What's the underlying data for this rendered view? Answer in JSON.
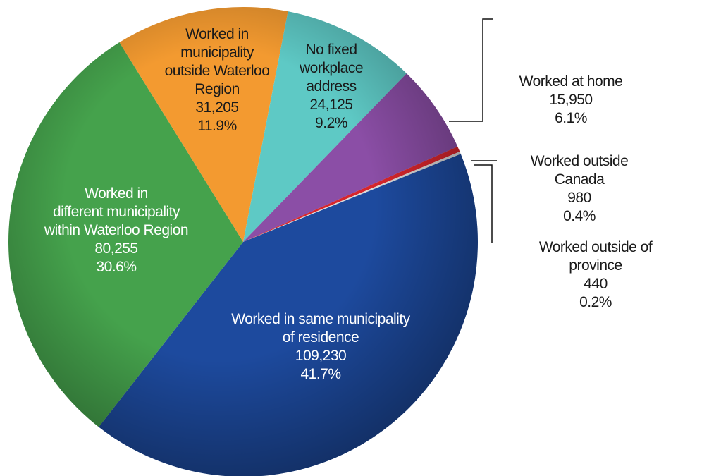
{
  "chart_data": {
    "type": "pie",
    "categories": [
      "Worked in same municipality\nof residence",
      "Worked in\ndifferent municipality\nwithin Waterloo Region",
      "Worked in\nmunicipality\noutside Waterloo\nRegion",
      "No fixed\nworkplace\naddress",
      "Worked at home",
      "Worked outside Canada",
      "Worked outside of province"
    ],
    "values": [
      109230,
      80255,
      31205,
      24125,
      15950,
      980,
      440
    ],
    "value_labels": [
      "109,230",
      "80,255",
      "31,205",
      "24,125",
      "15,950",
      "980",
      "440"
    ],
    "percents": [
      41.7,
      30.6,
      11.9,
      9.2,
      6.1,
      0.4,
      0.2
    ],
    "percent_labels": [
      "41.7%",
      "30.6%",
      "11.9%",
      "9.2%",
      "6.1%",
      "0.4%",
      "0.2%"
    ],
    "colors": [
      "#1d4a9e",
      "#45a24c",
      "#f39a30",
      "#5ec9c5",
      "#8b4ea6",
      "#d6262c",
      "#d9d9d9"
    ]
  }
}
